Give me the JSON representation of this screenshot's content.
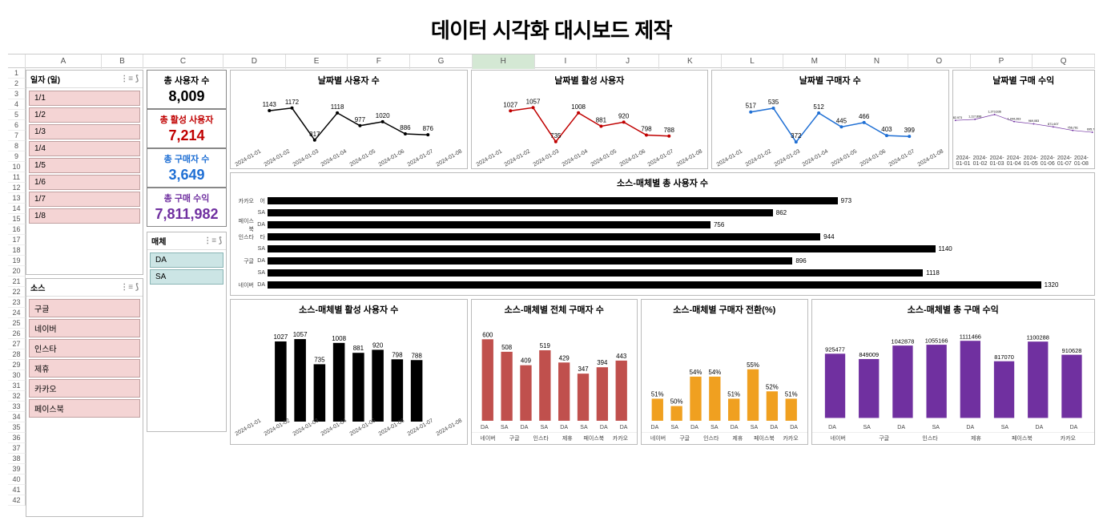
{
  "page_title": "데이터 시각화 대시보드 제작",
  "columns": [
    "",
    "A",
    "B",
    "C",
    "D",
    "E",
    "F",
    "G",
    "H",
    "I",
    "J",
    "K",
    "L",
    "M",
    "N",
    "O",
    "P",
    "Q"
  ],
  "highlighted_column": "H",
  "row_numbers": [
    1,
    2,
    3,
    4,
    5,
    6,
    7,
    8,
    9,
    10,
    11,
    12,
    13,
    14,
    15,
    16,
    17,
    18,
    19,
    20,
    21,
    22,
    23,
    24,
    25,
    26,
    27,
    28,
    29,
    30,
    31,
    32,
    33,
    34,
    35,
    36,
    37,
    38,
    39,
    40,
    41,
    42
  ],
  "slicers": {
    "date": {
      "title": "일자 (일)",
      "items": [
        "1/1",
        "1/2",
        "1/3",
        "1/4",
        "1/5",
        "1/6",
        "1/7",
        "1/8"
      ],
      "color": "pink"
    },
    "source": {
      "title": "소스",
      "items": [
        "구글",
        "네이버",
        "인스타",
        "제휴",
        "카카오",
        "페이스북"
      ],
      "color": "pink"
    },
    "media": {
      "title": "매체",
      "items": [
        "DA",
        "SA"
      ],
      "color": "blue"
    }
  },
  "kpis": [
    {
      "label": "총 사용자 수",
      "value": "8,009",
      "label_color": "#000",
      "value_color": "#000"
    },
    {
      "label": "총 활성 사용자",
      "value": "7,214",
      "label_color": "#c00000",
      "value_color": "#c00000"
    },
    {
      "label": "총 구매자 수",
      "value": "3,649",
      "label_color": "#1f6fd4",
      "value_color": "#1f6fd4"
    },
    {
      "label": "총 구매 수익",
      "value": "7,811,982",
      "label_color": "#7030a0",
      "value_color": "#7030a0"
    }
  ],
  "line_charts": [
    {
      "title": "날짜별 사용자 수",
      "color": "#000000",
      "x": [
        "2024-01-01",
        "2024-01-02",
        "2024-01-03",
        "2024-01-04",
        "2024-01-05",
        "2024-01-06",
        "2024-01-07",
        "2024-01-08"
      ],
      "values": [
        1143,
        1172,
        817,
        1118,
        977,
        1020,
        886,
        876
      ],
      "ymin": 700,
      "ymax": 1250
    },
    {
      "title": "날짜별 활성 사용자",
      "color": "#c00000",
      "x": [
        "2024-01-01",
        "2024-01-02",
        "2024-01-03",
        "2024-01-04",
        "2024-01-05",
        "2024-01-06",
        "2024-01-07",
        "2024-01-08"
      ],
      "values": [
        1027,
        1057,
        735,
        1008,
        881,
        920,
        798,
        788
      ],
      "ymin": 650,
      "ymax": 1120
    },
    {
      "title": "날짜별 구매자 수",
      "color": "#1f6fd4",
      "x": [
        "2024-01-01",
        "2024-01-02",
        "2024-01-03",
        "2024-01-04",
        "2024-01-05",
        "2024-01-06",
        "2024-01-07",
        "2024-01-08"
      ],
      "values": [
        517,
        535,
        372,
        512,
        445,
        466,
        403,
        399
      ],
      "ymin": 330,
      "ymax": 570
    },
    {
      "title": "날짜별 구매 수익",
      "color": "#7030a0",
      "x": [
        "2024-01-01",
        "2024-01-02",
        "2024-01-03",
        "2024-01-04",
        "2024-01-05",
        "2024-01-06",
        "2024-01-07",
        "2024-01-08"
      ],
      "values": [
        1082973,
        1117898,
        1273636,
        1044263,
        969083,
        871607,
        756761,
        695761
      ],
      "labels": [
        "1,082,973",
        "1,117,898",
        "1,273,636",
        "1,044,263",
        "969,083",
        "871,607",
        "756,761",
        "695,761"
      ],
      "ymin": 600000,
      "ymax": 1350000,
      "flat_xlabels": true
    }
  ],
  "hbar_chart": {
    "title": "소스-매체별 총 사용자 수",
    "max": 1400,
    "groups": [
      {
        "y": "카카오",
        "rows": [
          {
            "cat": "어",
            "val": 973
          }
        ]
      },
      {
        "y": "페이스북",
        "rows": [
          {
            "cat": "SA",
            "val": 862
          },
          {
            "cat": "DA",
            "val": 756
          }
        ]
      },
      {
        "y": "인스타",
        "rows": [
          {
            "cat": "타",
            "val": 944
          }
        ]
      },
      {
        "y": "구글",
        "rows": [
          {
            "cat": "SA",
            "val": 1140
          },
          {
            "cat": "DA",
            "val": 896
          }
        ]
      },
      {
        "y": "네이버",
        "rows": [
          {
            "cat": "SA",
            "val": 1118
          },
          {
            "cat": "DA",
            "val": 1320
          }
        ]
      }
    ]
  },
  "bar_charts": [
    {
      "title": "소스-매체별 활성 사용자 수",
      "color": "#000000",
      "x": [
        "2024-01-01",
        "2024-01-02",
        "2024-01-03",
        "2024-01-04",
        "2024-01-05",
        "2024-01-06",
        "2024-01-07",
        "2024-01-08"
      ],
      "values": [
        1027,
        1057,
        735,
        1008,
        881,
        920,
        798,
        788
      ],
      "ymax": 1150,
      "rot": true
    },
    {
      "title": "소스-매체별 전체 구매자 수",
      "color": "#c0504d",
      "grouped": true,
      "groups": [
        "네이버",
        "구글",
        "인스타",
        "제휴",
        "페이스북",
        "카카오"
      ],
      "sub": [
        "DA",
        "SA"
      ],
      "values": [
        [
          600,
          508
        ],
        [
          409,
          519
        ],
        [
          429,
          347
        ],
        [
          394,
          443
        ],
        [
          443,
          0
        ],
        [
          443,
          0
        ]
      ],
      "flat_values": [
        600,
        508,
        409,
        519,
        429,
        347,
        394,
        443
      ],
      "flat_sub": [
        "DA",
        "SA",
        "DA",
        "SA",
        "DA",
        "SA",
        "DA",
        "DA"
      ],
      "flat_groups": [
        "네이버",
        "구글",
        "인스타",
        "제휴",
        "페이스북",
        "카카오"
      ],
      "ymax": 650
    },
    {
      "title": "소스-매체별 구매자 전환(%)",
      "color": "#f0a020",
      "grouped": true,
      "flat_values": [
        51,
        50,
        54,
        54,
        51,
        55,
        52,
        51
      ],
      "flat_labels": [
        "51%",
        "50%",
        "54%",
        "54%",
        "51%",
        "55%",
        "52%",
        "51%"
      ],
      "flat_sub": [
        "DA",
        "SA",
        "DA",
        "SA",
        "DA",
        "SA",
        "DA",
        "DA"
      ],
      "flat_groups": [
        "네이버",
        "구글",
        "인스타",
        "제휴",
        "페이스북",
        "카카오"
      ],
      "ymax": 60,
      "ymin_vis": 48
    },
    {
      "title": "소스-매체별 총 구매 수익",
      "color": "#7030a0",
      "grouped": true,
      "flat_values": [
        925477,
        849009,
        1042878,
        1055166,
        1111466,
        817070,
        1100288,
        910628
      ],
      "flat_sub": [
        "DA",
        "SA",
        "DA",
        "SA",
        "DA",
        "SA",
        "DA",
        "DA"
      ],
      "flat_groups": [
        "네이버",
        "구글",
        "인스타",
        "제휴",
        "페이스북",
        "카카오"
      ],
      "ymax": 1200000
    }
  ]
}
